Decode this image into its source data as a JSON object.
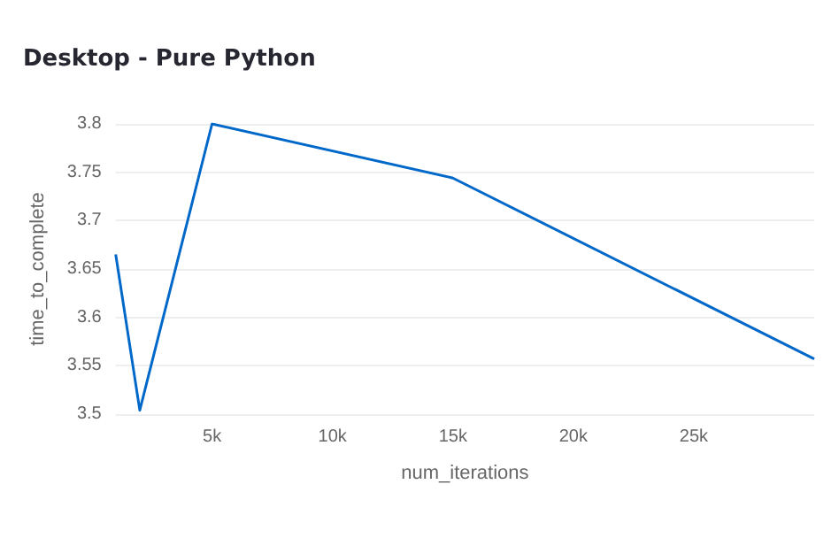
{
  "chart_data": {
    "type": "line",
    "title": "Desktop - Pure Python",
    "xlabel": "num_iterations",
    "ylabel": "time_to_complete",
    "x": [
      1000,
      2000,
      5000,
      15000,
      30000
    ],
    "series": [
      {
        "color": "#0068c9",
        "values": [
          3.665,
          3.504,
          3.8,
          3.744,
          3.557
        ]
      }
    ],
    "xlim": [
      1000,
      30000
    ],
    "xticks": [
      {
        "value": 5000,
        "label": "5k"
      },
      {
        "value": 10000,
        "label": "10k"
      },
      {
        "value": 15000,
        "label": "15k"
      },
      {
        "value": 20000,
        "label": "20k"
      },
      {
        "value": 25000,
        "label": "25k"
      }
    ],
    "ylim": [
      3.5,
      3.8
    ],
    "yticks": [
      3.5,
      3.55,
      3.6,
      3.65,
      3.7,
      3.75,
      3.8
    ],
    "grid": "y",
    "line_style": "solid"
  }
}
